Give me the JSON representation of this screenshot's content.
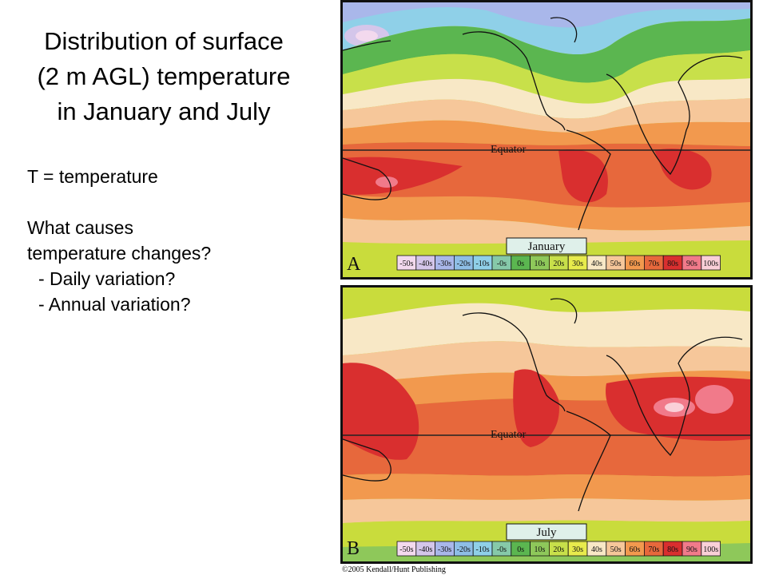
{
  "title": {
    "line1": "Distribution of surface",
    "line2": "(2 m AGL) temperature",
    "line3": "in January and July"
  },
  "text": {
    "definition": "T = temperature",
    "question_line1": "What causes",
    "question_line2": "temperature changes?",
    "bullet1": "- Daily variation?",
    "bullet2": "- Annual variation?"
  },
  "maps": {
    "january": {
      "panel_letter": "A",
      "season_label": "January",
      "equator_label": "Equator"
    },
    "july": {
      "panel_letter": "B",
      "season_label": "July",
      "equator_label": "Equator"
    }
  },
  "legend": {
    "labels": [
      "-50s",
      "-40s",
      "-30s",
      "-20s",
      "-10s",
      "-0s",
      "0s",
      "10s",
      "20s",
      "30s",
      "40s",
      "50s",
      "60s",
      "70s",
      "80s",
      "90s",
      "100s"
    ],
    "colors": [
      "#f3d9ee",
      "#d4c6ea",
      "#a9b7ea",
      "#8ebee6",
      "#8fd0e8",
      "#86c9a9",
      "#5bb650",
      "#8ec85a",
      "#c8e04a",
      "#e8eb4c",
      "#f8e8c6",
      "#f6c79a",
      "#f2994e",
      "#e7683c",
      "#d92f2f",
      "#f17a8a",
      "#fad0d8"
    ]
  },
  "copyright": "©2005 Kendall/Hunt Publishing"
}
